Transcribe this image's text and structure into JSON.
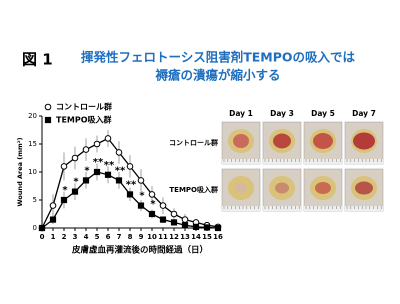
{
  "header": {
    "label": "図 1",
    "title": [
      "揮発性フェロトーシス阻害剤TEMPOの吸入では",
      "褥瘡の潰瘍が縮小する"
    ]
  },
  "chart_data": {
    "type": "line",
    "x": [
      0,
      1,
      2,
      3,
      4,
      5,
      6,
      7,
      8,
      9,
      10,
      11,
      12,
      13,
      14,
      15,
      16
    ],
    "xlim": [
      0,
      16
    ],
    "xticks": [
      0,
      1,
      2,
      3,
      4,
      5,
      6,
      7,
      8,
      9,
      10,
      11,
      12,
      13,
      14,
      15,
      16
    ],
    "ylim": [
      0,
      20
    ],
    "yticks": [
      0,
      5,
      10,
      15,
      20
    ],
    "y_label": "Wound Area (mm²)",
    "x_label": "皮膚虚血再灌流後の時間経過（日）",
    "series": [
      {
        "name": "コントロール群",
        "color": "#000000",
        "marker": "circle",
        "values": [
          0,
          4,
          11,
          12.5,
          14,
          15,
          16,
          13.5,
          11,
          8.5,
          6,
          4,
          2.5,
          1.5,
          1,
          0.5,
          0.2
        ],
        "errors": [
          0,
          2,
          2.5,
          2,
          2,
          1.5,
          1.5,
          2,
          2,
          2,
          1.5,
          1.5,
          1,
          1,
          0.5,
          0.5,
          0.2
        ]
      },
      {
        "name": "TEMPO吸入群",
        "color": "#000000",
        "marker": "square",
        "values": [
          0,
          1.5,
          5,
          6.5,
          8.5,
          10,
          9.5,
          8.5,
          6,
          4,
          2.5,
          1.5,
          1,
          0.5,
          0.2,
          0.1,
          0
        ],
        "errors": [
          0,
          0.8,
          1.5,
          1.5,
          1.5,
          1.5,
          1.5,
          1.5,
          1.2,
          1,
          0.8,
          0.6,
          0.5,
          0.3,
          0.2,
          0.1,
          0
        ]
      }
    ],
    "annotations": [
      {
        "x": 2,
        "text": "*"
      },
      {
        "x": 3,
        "text": "*"
      },
      {
        "x": 4,
        "text": "*"
      },
      {
        "x": 5,
        "text": "**"
      },
      {
        "x": 6,
        "text": "**"
      },
      {
        "x": 7,
        "text": "**"
      },
      {
        "x": 8,
        "text": "**"
      },
      {
        "x": 9,
        "text": "*"
      },
      {
        "x": 10,
        "text": "*"
      }
    ]
  },
  "photos": {
    "columns": [
      "Day 1",
      "Day 3",
      "Day 5",
      "Day 7"
    ],
    "rows": [
      "コントロール群",
      "TEMPO吸入群"
    ]
  }
}
